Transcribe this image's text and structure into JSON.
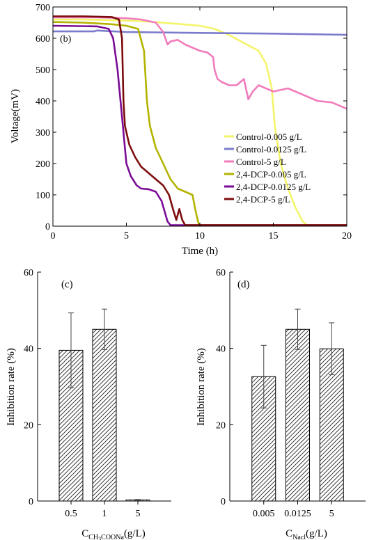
{
  "chart_data": [
    {
      "type": "line",
      "panel_label": "(b)",
      "xlabel": "Time (h)",
      "ylabel": "Voltage(mV)",
      "xlim": [
        0,
        20
      ],
      "ylim": [
        0,
        700
      ],
      "xticks": [
        0,
        5,
        10,
        15,
        20
      ],
      "yticks": [
        0,
        100,
        200,
        300,
        400,
        500,
        600,
        700
      ],
      "legend_position": "lower-right",
      "series": [
        {
          "name": "Control-0.005 g/L",
          "color": "#f4f46b",
          "x": [
            0,
            2,
            4,
            6,
            8,
            10,
            11,
            12,
            13,
            14,
            14.5,
            14.9,
            15.1,
            15.5,
            16,
            16.5,
            17,
            17.3,
            20
          ],
          "y": [
            660,
            660,
            658,
            655,
            648,
            640,
            630,
            610,
            585,
            560,
            520,
            440,
            320,
            200,
            120,
            60,
            15,
            3,
            3
          ]
        },
        {
          "name": "Control-0.0125 g/L",
          "color": "#7b7bcc",
          "x": [
            0,
            2.8,
            3,
            5,
            10,
            15,
            20
          ],
          "y": [
            622,
            622,
            625,
            620,
            617,
            615,
            611
          ]
        },
        {
          "name": "Control-5 g/L",
          "color": "#f07cbc",
          "x": [
            0,
            3,
            5,
            6,
            7,
            7.5,
            7.8,
            8,
            8.5,
            9,
            9.5,
            10,
            10.5,
            10.9,
            11,
            11.2,
            11.5,
            12,
            12.5,
            13,
            13.3,
            13.6,
            14,
            14.5,
            15,
            16,
            17,
            18,
            19,
            20
          ],
          "y": [
            667,
            667,
            664,
            660,
            650,
            620,
            580,
            590,
            595,
            580,
            570,
            560,
            555,
            540,
            500,
            470,
            460,
            450,
            450,
            470,
            405,
            430,
            450,
            440,
            430,
            440,
            420,
            400,
            395,
            375
          ]
        },
        {
          "name": "2,4-DCP-0.005 g/L",
          "color": "#b3b300",
          "x": [
            0,
            2,
            4,
            5,
            5.8,
            6.2,
            6.4,
            6.6,
            7,
            7.5,
            8,
            8.5,
            9,
            9.5,
            9.7,
            9.9,
            10,
            20
          ],
          "y": [
            652,
            650,
            645,
            640,
            630,
            560,
            400,
            320,
            250,
            200,
            150,
            120,
            110,
            100,
            50,
            10,
            3,
            3
          ]
        },
        {
          "name": "2,4-DCP-0.0125 g/L",
          "color": "#7a0b96",
          "x": [
            0,
            3,
            3.8,
            4.1,
            4.4,
            4.8,
            5,
            5.3,
            5.7,
            6,
            6.5,
            7,
            7.4,
            7.8,
            8,
            20
          ],
          "y": [
            640,
            638,
            630,
            600,
            500,
            300,
            200,
            160,
            130,
            120,
            118,
            110,
            80,
            15,
            3,
            3
          ]
        },
        {
          "name": "2,4-DCP-5 g/L",
          "color": "#7c0c0c",
          "x": [
            0,
            2,
            4,
            4.5,
            4.7,
            4.8,
            4.9,
            5.2,
            5.6,
            6,
            6.5,
            7,
            7.5,
            7.9,
            8.2,
            8.4,
            8.6,
            8.8,
            9,
            20
          ],
          "y": [
            670,
            670,
            668,
            660,
            600,
            400,
            320,
            260,
            220,
            190,
            170,
            150,
            130,
            100,
            50,
            20,
            55,
            20,
            3,
            3
          ]
        }
      ]
    },
    {
      "type": "bar",
      "panel_label": "(c)",
      "ylabel": "Inhibition rate (%)",
      "xlabel_main": "C",
      "xlabel_sub": "CH",
      "xlabel_sub_num": "3",
      "xlabel_sub_rest": "COONa",
      "xlabel_unit": "(g/L)",
      "ylim": [
        0,
        60
      ],
      "yticks": [
        0,
        20,
        40,
        60
      ],
      "categories": [
        "0.5",
        "1",
        "5"
      ],
      "values": [
        39.5,
        45.0,
        0.3
      ],
      "errors": [
        9.8,
        5.3,
        0.1
      ]
    },
    {
      "type": "bar",
      "panel_label": "(d)",
      "ylabel": "Inhibition rate (%)",
      "xlabel_main": "C",
      "xlabel_sub": "Nacl",
      "xlabel_unit": "(g/L)",
      "ylim": [
        0,
        60
      ],
      "yticks": [
        0,
        20,
        40,
        60
      ],
      "categories": [
        "0.005",
        "0.0125",
        "5"
      ],
      "values": [
        32.6,
        45.0,
        39.9
      ],
      "errors": [
        8.2,
        5.3,
        6.8
      ]
    }
  ]
}
